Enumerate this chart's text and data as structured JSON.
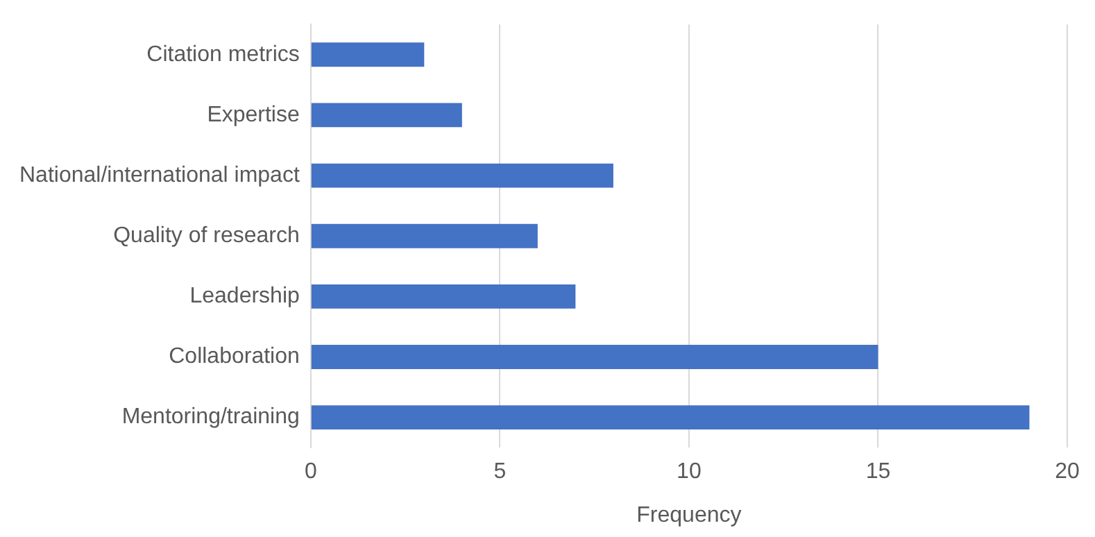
{
  "chart_data": {
    "type": "bar",
    "orientation": "horizontal",
    "xlabel": "Frequency",
    "categories": [
      "Citation metrics",
      "Expertise",
      "National/international impact",
      "Quality of research",
      "Leadership",
      "Collaboration",
      "Mentoring/training"
    ],
    "values": [
      3,
      4,
      8,
      6,
      7,
      15,
      19
    ],
    "color": "#4472c4",
    "xlim": [
      0,
      20
    ],
    "xticks": [
      0,
      5,
      10,
      15,
      20
    ],
    "grid": "x",
    "legend": false
  }
}
